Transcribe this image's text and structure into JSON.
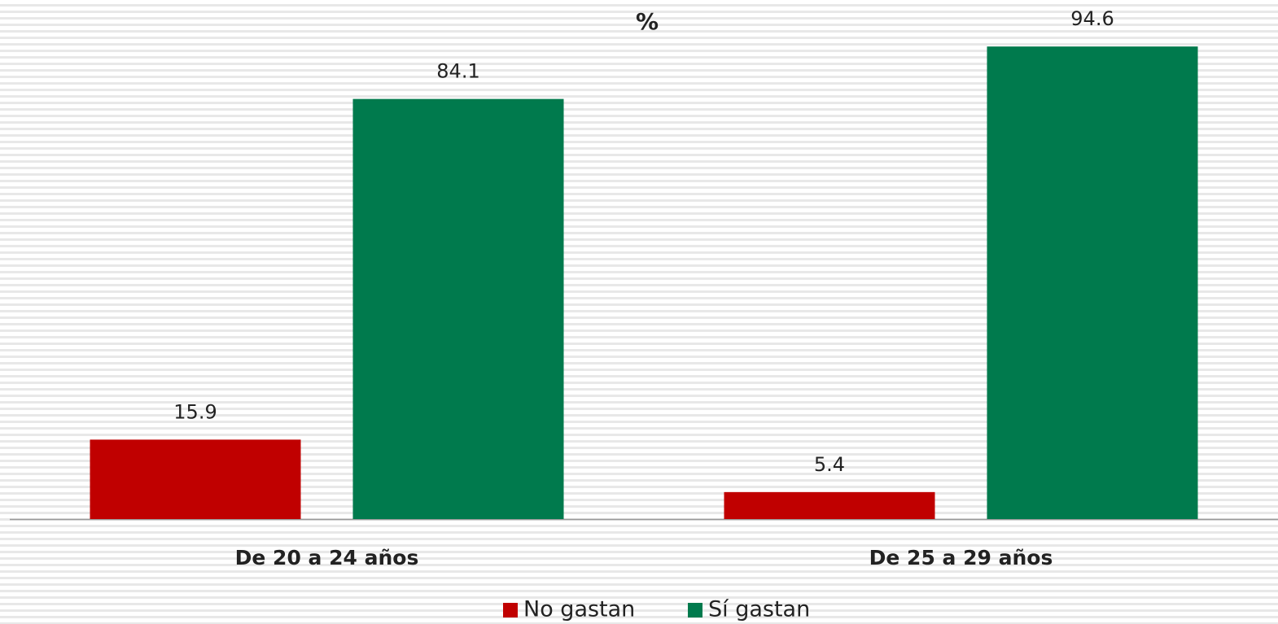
{
  "chart_data": {
    "type": "bar",
    "title": "%",
    "categories": [
      "De 20 a 24 años",
      "De 25 a 29 años"
    ],
    "series": [
      {
        "name": "No gastan",
        "color": "#c00000",
        "values": [
          15.9,
          5.4
        ]
      },
      {
        "name": "Sí gastan",
        "color": "#007a4d",
        "values": [
          84.1,
          94.6
        ]
      }
    ],
    "ylim": [
      0,
      100
    ],
    "legend": "bottom"
  }
}
